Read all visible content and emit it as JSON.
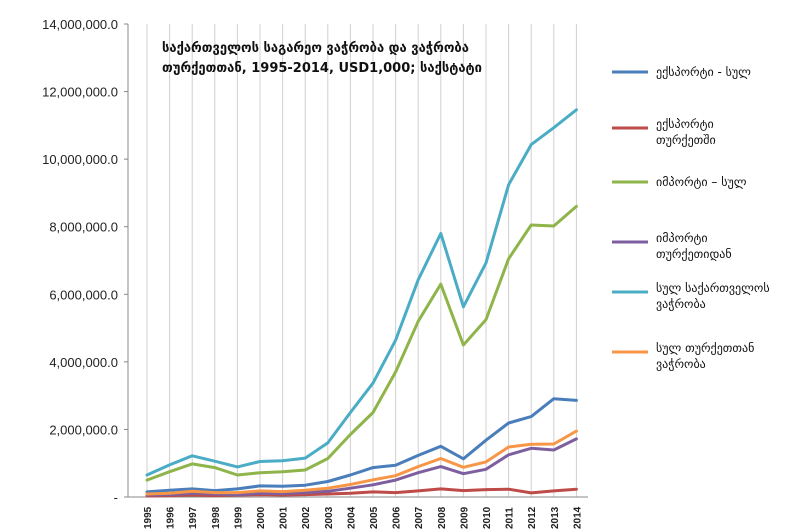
{
  "chart_data": {
    "type": "line",
    "title": [
      "საქართველოს საგარეო ვაჭრობა და ვაჭრობა",
      "თურქეთთან, 1995-2014, USD1,000; საქსტატი"
    ],
    "x": [
      "1995",
      "1996",
      "1997",
      "1998",
      "1999",
      "2000",
      "2001",
      "2002",
      "2003",
      "2004",
      "2005",
      "2006",
      "2007",
      "2008",
      "2009",
      "2010",
      "2011",
      "2012",
      "2013",
      "2014"
    ],
    "y_tick_labels": [
      "-",
      "2,000,000.0",
      "4,000,000.0",
      "6,000,000.0",
      "8,000,000.0",
      "10,000,000.0",
      "12,000,000.0",
      "14,000,000.0"
    ],
    "ylim": [
      0,
      14000000
    ],
    "grid": "vertical",
    "legend_position": "right",
    "series": [
      {
        "name": "ექსპორტი - სულ",
        "color": "#4a7ebb",
        "values": [
          150000,
          200000,
          240000,
          190000,
          240000,
          330000,
          320000,
          350000,
          460000,
          650000,
          870000,
          940000,
          1230000,
          1500000,
          1130000,
          1680000,
          2190000,
          2380000,
          2910000,
          2860000
        ]
      },
      {
        "name": "ექსპორტი თურქეთში",
        "color": "#be4b48",
        "values": [
          30000,
          40000,
          60000,
          40000,
          60000,
          70000,
          60000,
          70000,
          90000,
          110000,
          150000,
          130000,
          180000,
          240000,
          190000,
          220000,
          230000,
          120000,
          180000,
          230000
        ]
      },
      {
        "name": "იმპორტი – სულ",
        "color": "#8eb44a",
        "values": [
          500000,
          750000,
          980000,
          870000,
          650000,
          720000,
          750000,
          800000,
          1140000,
          1850000,
          2500000,
          3700000,
          5200000,
          6300000,
          4500000,
          5250000,
          7050000,
          8050000,
          8020000,
          8600000
        ]
      },
      {
        "name": "იმპორტი თურქეთიდან",
        "color": "#7d5fa0",
        "values": [
          60000,
          70000,
          110000,
          90000,
          70000,
          110000,
          100000,
          130000,
          170000,
          260000,
          360000,
          500000,
          720000,
          900000,
          690000,
          820000,
          1250000,
          1440000,
          1390000,
          1720000
        ]
      },
      {
        "name": "სულ საქართველოს ვაჭრობა",
        "color": "#4bacc6",
        "values": [
          650000,
          950000,
          1220000,
          1060000,
          890000,
          1050000,
          1070000,
          1150000,
          1600000,
          2500000,
          3370000,
          4640000,
          6430000,
          7800000,
          5630000,
          6930000,
          9240000,
          10430000,
          10930000,
          11460000
        ]
      },
      {
        "name": "სულ თურქეთთან ვაჭრობა",
        "color": "#f79646",
        "values": [
          90000,
          110000,
          170000,
          130000,
          130000,
          180000,
          160000,
          200000,
          260000,
          370000,
          510000,
          630000,
          900000,
          1140000,
          880000,
          1040000,
          1480000,
          1560000,
          1570000,
          1950000
        ]
      }
    ]
  }
}
